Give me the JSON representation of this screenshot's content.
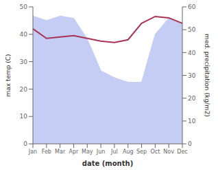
{
  "chart_data": {
    "type": "line",
    "categories": [
      "Jan",
      "Feb",
      "Mar",
      "Apr",
      "May",
      "Jun",
      "Jul",
      "Aug",
      "Sep",
      "Oct",
      "Nov",
      "Dec"
    ],
    "series": [
      {
        "type": "area",
        "axis": "y2",
        "color": "#c5cdf5",
        "values": [
          56,
          54,
          56,
          55,
          46,
          32,
          29,
          27,
          27,
          48,
          55,
          53
        ]
      },
      {
        "type": "line",
        "axis": "y",
        "color": "#aa3355",
        "values": [
          42,
          38.5,
          39,
          39.5,
          38.5,
          37.5,
          37,
          38,
          44,
          46.5,
          46,
          44
        ]
      }
    ],
    "xlabel": "date (month)",
    "ylabel": "max temp (C)",
    "y2label": "med. precipitation (kg/m2)",
    "ylim": [
      0,
      50
    ],
    "yticks": [
      0,
      10,
      20,
      30,
      40,
      50
    ],
    "y2lim": [
      0,
      60
    ],
    "y2ticks": [
      0,
      10,
      20,
      30,
      40,
      50,
      60
    ],
    "grid": false
  }
}
